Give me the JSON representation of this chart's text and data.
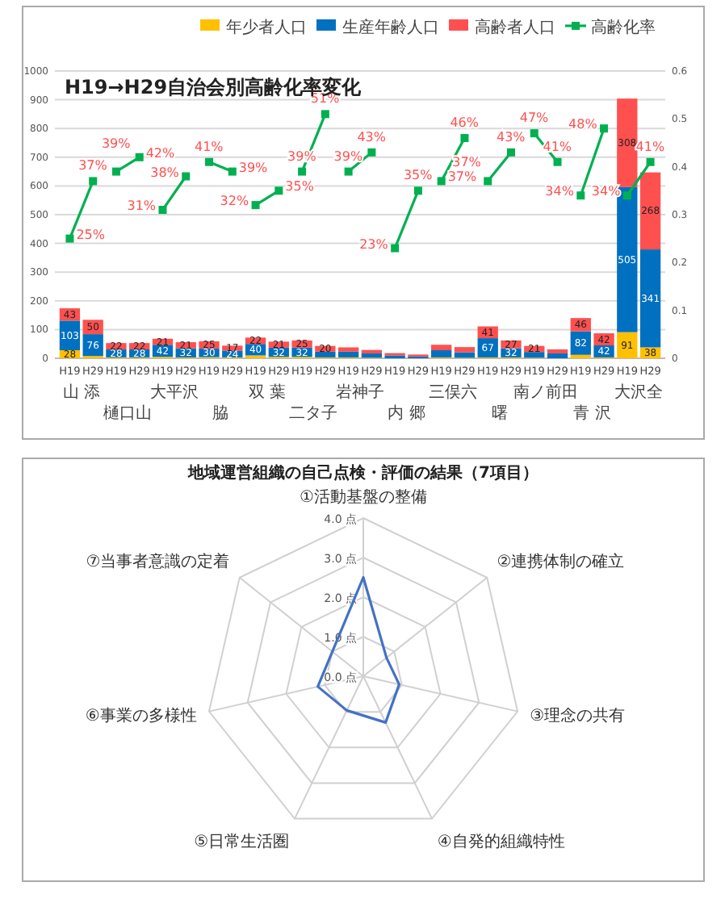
{
  "chart_data": [
    {
      "type": "bar",
      "stacked": true,
      "title": "H19→H29自治会別高齢化率変化",
      "categories": [
        "H19",
        "H29",
        "H19",
        "H29",
        "H19",
        "H29",
        "H19",
        "H29",
        "H19",
        "H29",
        "H19",
        "H29",
        "H19",
        "H29",
        "H19",
        "H29",
        "H19",
        "H29",
        "H19",
        "H29",
        "H19",
        "H29",
        "H19",
        "H29",
        "H19",
        "H29"
      ],
      "annotations": [
        "山 添",
        "樋口山",
        "大平沢",
        "脇",
        "双 葉",
        "二タ子",
        "岩神子",
        "内 郷",
        "三俣六",
        "曙",
        "南ノ前田",
        "青 沢",
        "大沢全"
      ],
      "ylim": [
        0,
        1000
      ],
      "yticks": [
        0,
        100,
        200,
        300,
        400,
        500,
        600,
        700,
        800,
        900,
        1000
      ],
      "y2lim": [
        0,
        0.6
      ],
      "y2ticks": [
        0,
        0.1,
        0.2,
        0.3,
        0.4,
        0.5,
        0.6
      ],
      "grid": "y",
      "legend": "top right",
      "marker": "square",
      "series": [
        {
          "name": "年少者人口",
          "color": "#ffc000",
          "values": [
            28,
            8,
            3,
            3,
            5,
            3,
            4,
            3,
            10,
            5,
            5,
            3,
            3,
            2,
            null,
            null,
            3,
            2,
            3,
            3,
            2,
            null,
            12,
            3,
            91,
            38
          ],
          "value_labels": [
            "28",
            null,
            null,
            null,
            null,
            null,
            null,
            null,
            null,
            null,
            null,
            null,
            null,
            null,
            null,
            null,
            null,
            null,
            null,
            null,
            null,
            null,
            null,
            null,
            "91",
            "38"
          ]
        },
        {
          "name": "生産年齢人口",
          "color": "#0070c0",
          "values": [
            103,
            76,
            28,
            28,
            42,
            32,
            30,
            24,
            40,
            32,
            32,
            20,
            20,
            15,
            10,
            6,
            25,
            19,
            67,
            32,
            20,
            17,
            82,
            42,
            505,
            341
          ],
          "value_labels": [
            "103",
            "76",
            "28",
            "28",
            "42",
            "32",
            "30",
            "24",
            "40",
            "32",
            "32",
            null,
            null,
            null,
            null,
            null,
            null,
            null,
            "67",
            "32",
            null,
            null,
            "82",
            "42",
            "505",
            "341"
          ]
        },
        {
          "name": "高齢者人口",
          "color": "#ff5050",
          "values": [
            43,
            50,
            22,
            22,
            21,
            21,
            25,
            17,
            22,
            21,
            25,
            20,
            15,
            12,
            8,
            7,
            19,
            18,
            41,
            27,
            21,
            14,
            46,
            42,
            308,
            268
          ],
          "value_labels": [
            "43",
            "50",
            "22",
            "22",
            "21",
            "21",
            "25",
            "17",
            "22",
            "21",
            "25",
            "20",
            null,
            null,
            null,
            null,
            null,
            null,
            "41",
            "27",
            "21",
            null,
            "46",
            "42",
            "308",
            "268"
          ]
        },
        {
          "name": "高齢化率",
          "type": "line",
          "axis": "y2",
          "color": "#00b050",
          "values": [
            0.25,
            0.37,
            null,
            null,
            null,
            null,
            null,
            null,
            null,
            null,
            null,
            null,
            null,
            null,
            null,
            null,
            null,
            null,
            null,
            null,
            null,
            null,
            null,
            null,
            null,
            null
          ],
          "value_labels": [
            "25%",
            "37%",
            null,
            null,
            null,
            null,
            null,
            null,
            null,
            null,
            null,
            null,
            null,
            null,
            null,
            null,
            null,
            null,
            null,
            null,
            null,
            null,
            null,
            null,
            null,
            null
          ]
        },
        {
          "type": "line",
          "axis": "y2",
          "color": "#00b050",
          "values": [
            null,
            null,
            0.39,
            0.42,
            null,
            null,
            null,
            null,
            null,
            null,
            null,
            null,
            null,
            null,
            null,
            null,
            null,
            null,
            null,
            null,
            null,
            null,
            null,
            null,
            null,
            null
          ],
          "value_labels": [
            null,
            null,
            "39%",
            "42%",
            null,
            null,
            null,
            null,
            null,
            null,
            null,
            null,
            null,
            null,
            null,
            null,
            null,
            null,
            null,
            null,
            null,
            null,
            null,
            null,
            null,
            null
          ]
        },
        {
          "type": "line",
          "axis": "y2",
          "color": "#00b050",
          "values": [
            null,
            null,
            null,
            null,
            0.31,
            0.38,
            null,
            null,
            null,
            null,
            null,
            null,
            null,
            null,
            null,
            null,
            null,
            null,
            null,
            null,
            null,
            null,
            null,
            null,
            null,
            null
          ],
          "value_labels": [
            null,
            null,
            null,
            null,
            "31%",
            "38%",
            null,
            null,
            null,
            null,
            null,
            null,
            null,
            null,
            null,
            null,
            null,
            null,
            null,
            null,
            null,
            null,
            null,
            null,
            null,
            null
          ]
        },
        {
          "type": "line",
          "axis": "y2",
          "color": "#00b050",
          "values": [
            null,
            null,
            null,
            null,
            null,
            null,
            0.41,
            0.39,
            null,
            null,
            null,
            null,
            null,
            null,
            null,
            null,
            null,
            null,
            null,
            null,
            null,
            null,
            null,
            null,
            null,
            null
          ],
          "value_labels": [
            null,
            null,
            null,
            null,
            null,
            null,
            "41%",
            "39%",
            null,
            null,
            null,
            null,
            null,
            null,
            null,
            null,
            null,
            null,
            null,
            null,
            null,
            null,
            null,
            null,
            null,
            null
          ]
        },
        {
          "type": "line",
          "axis": "y2",
          "color": "#00b050",
          "values": [
            null,
            null,
            null,
            null,
            null,
            null,
            null,
            null,
            0.32,
            0.35,
            null,
            null,
            null,
            null,
            null,
            null,
            null,
            null,
            null,
            null,
            null,
            null,
            null,
            null,
            null,
            null
          ],
          "value_labels": [
            null,
            null,
            null,
            null,
            null,
            null,
            null,
            null,
            "32%",
            "35%",
            null,
            null,
            null,
            null,
            null,
            null,
            null,
            null,
            null,
            null,
            null,
            null,
            null,
            null,
            null,
            null
          ]
        },
        {
          "type": "line",
          "axis": "y2",
          "color": "#00b050",
          "values": [
            null,
            null,
            null,
            null,
            null,
            null,
            null,
            null,
            null,
            null,
            0.39,
            0.51,
            null,
            null,
            null,
            null,
            null,
            null,
            null,
            null,
            null,
            null,
            null,
            null,
            null,
            null
          ],
          "value_labels": [
            null,
            null,
            null,
            null,
            null,
            null,
            null,
            null,
            null,
            null,
            "39%",
            "51%",
            null,
            null,
            null,
            null,
            null,
            null,
            null,
            null,
            null,
            null,
            null,
            null,
            null,
            null
          ]
        },
        {
          "type": "line",
          "axis": "y2",
          "color": "#00b050",
          "values": [
            null,
            null,
            null,
            null,
            null,
            null,
            null,
            null,
            null,
            null,
            null,
            null,
            0.39,
            0.43,
            null,
            null,
            null,
            null,
            null,
            null,
            null,
            null,
            null,
            null,
            null,
            null
          ],
          "value_labels": [
            null,
            null,
            null,
            null,
            null,
            null,
            null,
            null,
            null,
            null,
            null,
            null,
            "39%",
            "43%",
            null,
            null,
            null,
            null,
            null,
            null,
            null,
            null,
            null,
            null,
            null,
            null
          ]
        },
        {
          "type": "line",
          "axis": "y2",
          "color": "#00b050",
          "values": [
            null,
            null,
            null,
            null,
            null,
            null,
            null,
            null,
            null,
            null,
            null,
            null,
            null,
            null,
            0.23,
            0.35,
            null,
            null,
            null,
            null,
            null,
            null,
            null,
            null,
            null,
            null
          ],
          "value_labels": [
            null,
            null,
            null,
            null,
            null,
            null,
            null,
            null,
            null,
            null,
            null,
            null,
            null,
            null,
            "23%",
            "35%",
            null,
            null,
            null,
            null,
            null,
            null,
            null,
            null,
            null,
            null
          ]
        },
        {
          "type": "line",
          "axis": "y2",
          "color": "#00b050",
          "values": [
            null,
            null,
            null,
            null,
            null,
            null,
            null,
            null,
            null,
            null,
            null,
            null,
            null,
            null,
            null,
            null,
            0.37,
            0.46,
            null,
            null,
            null,
            null,
            null,
            null,
            null,
            null
          ],
          "value_labels": [
            null,
            null,
            null,
            null,
            null,
            null,
            null,
            null,
            null,
            null,
            null,
            null,
            null,
            null,
            null,
            null,
            "37%",
            "46%",
            null,
            null,
            null,
            null,
            null,
            null,
            null,
            null
          ]
        },
        {
          "type": "line",
          "axis": "y2",
          "color": "#00b050",
          "values": [
            null,
            null,
            null,
            null,
            null,
            null,
            null,
            null,
            null,
            null,
            null,
            null,
            null,
            null,
            null,
            null,
            null,
            null,
            0.37,
            0.43,
            null,
            null,
            null,
            null,
            null,
            null
          ],
          "value_labels": [
            null,
            null,
            null,
            null,
            null,
            null,
            null,
            null,
            null,
            null,
            null,
            null,
            null,
            null,
            null,
            null,
            null,
            null,
            "37%",
            "43%",
            null,
            null,
            null,
            null,
            null,
            null
          ]
        },
        {
          "type": "line",
          "axis": "y2",
          "color": "#00b050",
          "values": [
            null,
            null,
            null,
            null,
            null,
            null,
            null,
            null,
            null,
            null,
            null,
            null,
            null,
            null,
            null,
            null,
            null,
            null,
            null,
            null,
            0.47,
            0.41,
            null,
            null,
            null,
            null
          ],
          "value_labels": [
            null,
            null,
            null,
            null,
            null,
            null,
            null,
            null,
            null,
            null,
            null,
            null,
            null,
            null,
            null,
            null,
            null,
            null,
            null,
            null,
            "47%",
            "41%",
            null,
            null,
            null,
            null
          ]
        },
        {
          "type": "line",
          "axis": "y2",
          "color": "#00b050",
          "values": [
            null,
            null,
            null,
            null,
            null,
            null,
            null,
            null,
            null,
            null,
            null,
            null,
            null,
            null,
            null,
            null,
            null,
            null,
            null,
            null,
            null,
            null,
            0.34,
            0.48,
            null,
            null
          ],
          "value_labels": [
            null,
            null,
            null,
            null,
            null,
            null,
            null,
            null,
            null,
            null,
            null,
            null,
            null,
            null,
            null,
            null,
            null,
            null,
            null,
            null,
            null,
            null,
            "34%",
            "48%",
            null,
            null
          ]
        },
        {
          "type": "line",
          "axis": "y2",
          "color": "#00b050",
          "values": [
            null,
            null,
            null,
            null,
            null,
            null,
            null,
            null,
            null,
            null,
            null,
            null,
            null,
            null,
            null,
            null,
            null,
            null,
            null,
            null,
            null,
            null,
            null,
            null,
            0.34,
            0.41
          ],
          "value_labels": [
            null,
            null,
            null,
            null,
            null,
            null,
            null,
            null,
            null,
            null,
            null,
            null,
            null,
            null,
            null,
            null,
            null,
            null,
            null,
            null,
            null,
            null,
            null,
            null,
            "34%",
            "41%"
          ]
        }
      ]
    },
    {
      "type": "radar",
      "title": "地域運営組織の自己点検・評価の結果（7項目）",
      "categories": [
        "①活動基盤の整備",
        "②連携体制の確立",
        "③理念の共有",
        "④自発的組織特性",
        "⑤日常生活圏",
        "⑥事業の多様性",
        "⑦当事者意識の定着"
      ],
      "ylim": [
        0,
        4
      ],
      "yticks": [
        {
          "value": 0,
          "label": "0.0 点"
        },
        {
          "value": 1,
          "label": "1.0 点"
        },
        {
          "value": 2,
          "label": "2.0 点"
        },
        {
          "value": 3,
          "label": "3.0 点"
        },
        {
          "value": 4,
          "label": "4.0 点"
        }
      ],
      "grid": true,
      "series": [
        {
          "color": "#4472c4",
          "values": [
            2.5,
            0.75,
            0.93,
            1.3,
            0.96,
            1.18,
            1.0
          ]
        }
      ]
    }
  ]
}
